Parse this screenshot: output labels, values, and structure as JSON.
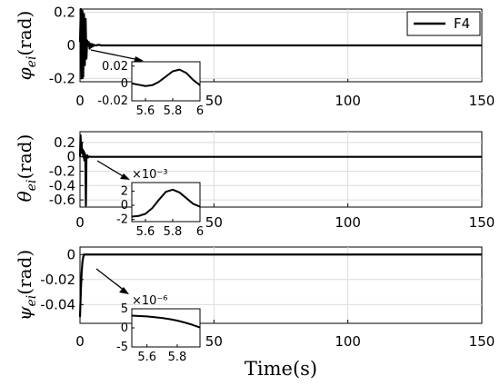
{
  "chart_data": [
    {
      "type": "line",
      "ylabel": "φei(rad)",
      "ylabel_main": "φ",
      "ylabel_sub": "ei",
      "ylabel_unit": "(rad)",
      "xlim": [
        0,
        150
      ],
      "ylim": [
        -0.22,
        0.22
      ],
      "xticks": [
        0,
        50,
        100,
        150
      ],
      "xtick_labels": [
        "0",
        "50",
        "100",
        "150"
      ],
      "xtick_labels_visible": true,
      "yticks": [
        0.2,
        0,
        -0.2
      ],
      "ytick_labels": [
        "0.2",
        "0",
        "-0.2"
      ],
      "grid": true,
      "legend": {
        "placement": "top-right",
        "entries": [
          "F4"
        ]
      },
      "series": [
        {
          "name": "F4",
          "x": [
            0,
            0.3,
            0.6,
            0.9,
            1.2,
            1.5,
            1.8,
            2.1,
            2.4,
            2.7,
            3.0,
            3.3,
            3.6,
            3.9,
            4.2,
            4.5,
            4.8,
            5.2,
            5.6,
            6.0,
            7.0,
            8.0,
            150
          ],
          "y": [
            0.02,
            0.22,
            -0.2,
            0.21,
            -0.19,
            0.19,
            -0.12,
            0.16,
            -0.08,
            0.03,
            0.0,
            0.02,
            -0.02,
            0.01,
            -0.01,
            0.008,
            -0.006,
            0.004,
            0.0,
            0.0,
            0.004,
            0.0,
            0.0
          ]
        }
      ],
      "inset": {
        "xlim": [
          5.5,
          6.0
        ],
        "ylim": [
          -0.02,
          0.025
        ],
        "xticks": [
          5.6,
          5.8,
          6.0
        ],
        "xtick_labels": [
          "5.6",
          "5.8",
          "6"
        ],
        "yticks": [
          0.02,
          0,
          -0.02
        ],
        "ytick_labels": [
          "0.02",
          "0",
          "-0.02"
        ],
        "scale_label": "",
        "x": [
          5.5,
          5.55,
          5.6,
          5.65,
          5.7,
          5.75,
          5.8,
          5.85,
          5.9,
          5.95,
          6.0
        ],
        "y": [
          0.0,
          -0.0015,
          -0.003,
          -0.002,
          0.002,
          0.008,
          0.014,
          0.016,
          0.012,
          0.004,
          -0.002
        ]
      }
    },
    {
      "type": "line",
      "ylabel": "θei(rad)",
      "ylabel_main": "θ",
      "ylabel_sub": "ei",
      "ylabel_unit": "(rad)",
      "xlim": [
        0,
        150
      ],
      "ylim": [
        -0.7,
        0.35
      ],
      "xticks": [
        0,
        50,
        100,
        150
      ],
      "xtick_labels": [
        "0",
        "50",
        "100",
        "150"
      ],
      "xtick_labels_visible": true,
      "yticks": [
        0.2,
        0,
        -0.2,
        -0.4,
        -0.6
      ],
      "ytick_labels": [
        "0.2",
        "0",
        "-0.2",
        "-0.4",
        "-0.6"
      ],
      "grid": true,
      "legend": null,
      "series": [
        {
          "name": "",
          "x": [
            0,
            0.2,
            0.4,
            0.6,
            0.8,
            1.0,
            1.2,
            1.4,
            1.6,
            1.8,
            2.0,
            2.2,
            2.4,
            2.7,
            3.0,
            3.4,
            4.0,
            5.0,
            150
          ],
          "y": [
            0.0,
            0.3,
            0.12,
            0.2,
            0.05,
            0.1,
            0.0,
            0.08,
            -0.05,
            0.05,
            0.0,
            -0.68,
            0.0,
            0.02,
            -0.01,
            0.005,
            0.0,
            0.0,
            0.0
          ]
        }
      ],
      "inset": {
        "xlim": [
          5.5,
          6.0
        ],
        "ylim": [
          -2.3,
          3.2
        ],
        "xticks": [
          5.6,
          5.8,
          6.0
        ],
        "xtick_labels": [
          "5.6",
          "5.8",
          "6"
        ],
        "yticks": [
          2,
          0,
          -2
        ],
        "ytick_labels": [
          "2",
          "0",
          "-2"
        ],
        "scale_label": "×10⁻³",
        "x": [
          5.5,
          5.55,
          5.6,
          5.65,
          5.7,
          5.75,
          5.8,
          5.85,
          5.9,
          5.95,
          6.0
        ],
        "y": [
          -1.6,
          -1.5,
          -1.2,
          -0.4,
          0.8,
          1.9,
          2.2,
          1.8,
          1.0,
          0.2,
          -0.2
        ]
      }
    },
    {
      "type": "line",
      "ylabel": "ψei(rad)",
      "ylabel_main": "ψ",
      "ylabel_sub": "ei",
      "ylabel_unit": "(rad)",
      "xlim": [
        0,
        150
      ],
      "ylim": [
        -0.055,
        0.006
      ],
      "xticks": [
        0,
        50,
        100,
        150
      ],
      "xtick_labels": [
        "0",
        "50",
        "100",
        "150"
      ],
      "xtick_labels_visible": true,
      "xlabel": "Time(s)",
      "yticks": [
        0,
        -0.02,
        -0.04
      ],
      "ytick_labels": [
        "0",
        "-0.02",
        "-0.04"
      ],
      "grid": true,
      "legend": null,
      "series": [
        {
          "name": "",
          "x": [
            0,
            0.3,
            0.6,
            0.9,
            1.2,
            1.5,
            1.8,
            2.2,
            2.6,
            3.0,
            4.0,
            5.0,
            150
          ],
          "y": [
            -0.05,
            -0.03,
            -0.015,
            -0.006,
            -0.002,
            0.0,
            0.0,
            0.0,
            0.0,
            0.0,
            0.0,
            0.0,
            0.0
          ]
        }
      ],
      "inset": {
        "xlim": [
          5.5,
          5.95
        ],
        "ylim": [
          -5.0,
          5.0
        ],
        "xticks": [
          5.6,
          5.8
        ],
        "xtick_labels": [
          "5.6",
          "5.8"
        ],
        "yticks": [
          5,
          0,
          -5
        ],
        "ytick_labels": [
          "5",
          "0",
          "-5"
        ],
        "scale_label": "×10⁻⁶",
        "x": [
          5.5,
          5.55,
          5.6,
          5.65,
          5.7,
          5.75,
          5.8,
          5.85,
          5.9,
          5.95
        ],
        "y": [
          3.2,
          3.1,
          3.0,
          2.8,
          2.6,
          2.3,
          1.9,
          1.4,
          0.8,
          0.1
        ]
      }
    }
  ]
}
